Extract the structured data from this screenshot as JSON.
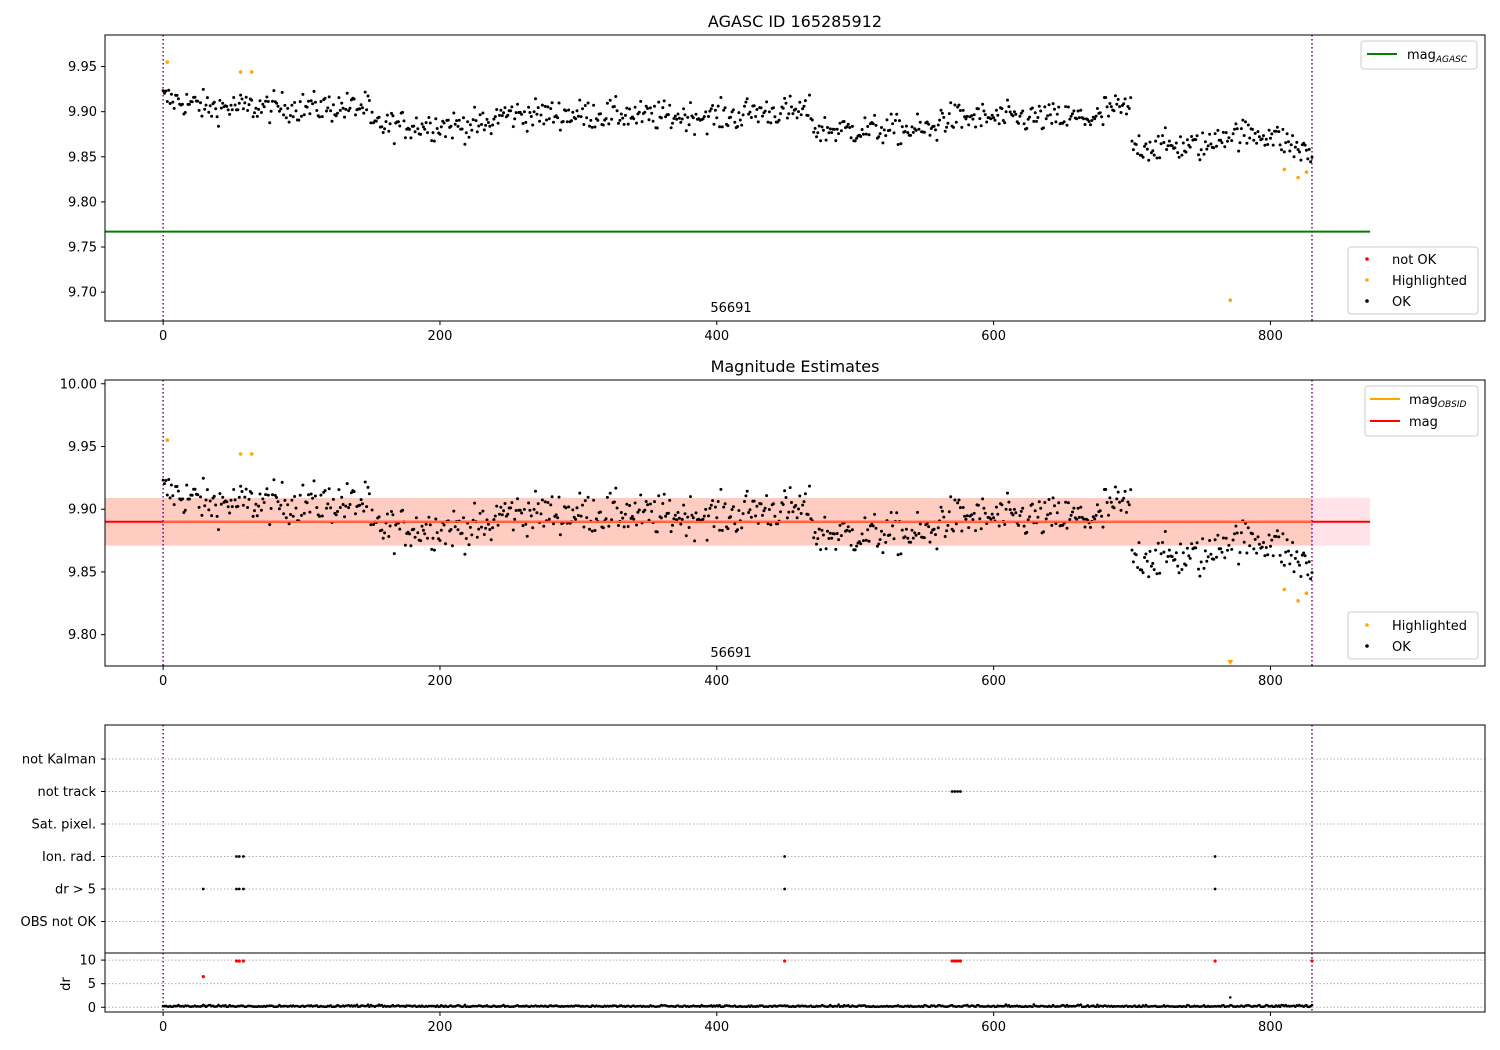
{
  "chart_data": [
    {
      "panel": "top",
      "type": "scatter",
      "title": "AGASC ID 165285912",
      "xlabel": "",
      "ylabel": "",
      "xlim": [
        -42,
        955
      ],
      "ylim": [
        9.668,
        9.985
      ],
      "xticks": [
        0,
        200,
        400,
        600,
        800
      ],
      "yticks": [
        "9.70",
        "9.75",
        "9.80",
        "9.85",
        "9.90",
        "9.95"
      ],
      "obsid_label": "56691",
      "obsid_label_x": 415,
      "vlines_x": [
        0,
        830
      ],
      "reference_line": {
        "name": "mag_AGASC",
        "y": 9.767,
        "x_range": [
          -42,
          872
        ],
        "color": "#008000"
      },
      "legend_lines": [
        {
          "name": "mag",
          "sub": "AGASC",
          "color": "#008000"
        }
      ],
      "legend_points": [
        {
          "name": "not OK",
          "color": "#ff0000"
        },
        {
          "name": "Highlighted",
          "color": "#ffa500"
        },
        {
          "name": "OK",
          "color": "#000000"
        }
      ],
      "series": [
        {
          "name": "OK",
          "color": "#000000",
          "generator": "main"
        },
        {
          "name": "Highlighted",
          "color": "#ffa500",
          "points": [
            [
              3,
              9.955
            ],
            [
              56,
              9.944
            ],
            [
              64,
              9.944
            ],
            [
              771,
              9.691
            ],
            [
              810,
              9.836
            ],
            [
              820,
              9.827
            ],
            [
              826,
              9.833
            ]
          ]
        },
        {
          "name": "not OK",
          "color": "#ff0000",
          "points": []
        }
      ]
    },
    {
      "panel": "middle",
      "type": "scatter",
      "title": "Magnitude Estimates",
      "xlabel": "",
      "ylabel": "",
      "xlim": [
        -42,
        955
      ],
      "ylim": [
        9.775,
        10.003
      ],
      "xticks": [
        0,
        200,
        400,
        600,
        800
      ],
      "yticks": [
        "9.80",
        "9.85",
        "9.90",
        "9.95",
        "10.00"
      ],
      "obsid_label": "56691",
      "obsid_label_x": 415,
      "vlines_x": [
        0,
        830
      ],
      "reference_line": {
        "name": "mag",
        "y": 9.89,
        "x_range": [
          -42,
          872
        ],
        "color": "#ff0000"
      },
      "band_outer": {
        "y": [
          9.871,
          9.909
        ],
        "x_range": [
          -42,
          872
        ],
        "color": "#ffc0cb"
      },
      "band_inner": {
        "y": [
          9.871,
          9.909
        ],
        "x_range": [
          -42,
          830
        ],
        "color": "#ffa07a"
      },
      "legend_lines": [
        {
          "name": "mag",
          "sub": "OBSID",
          "color": "#ffa500"
        },
        {
          "name": "mag",
          "sub": "",
          "color": "#ff0000"
        }
      ],
      "legend_points": [
        {
          "name": "Highlighted",
          "color": "#ffa500"
        },
        {
          "name": "OK",
          "color": "#000000"
        }
      ],
      "series": [
        {
          "name": "OK",
          "color": "#000000",
          "generator": "main"
        },
        {
          "name": "Highlighted",
          "color": "#ffa500",
          "points": [
            [
              3,
              9.955
            ],
            [
              56,
              9.944
            ],
            [
              64,
              9.944
            ],
            [
              810,
              9.836
            ],
            [
              820,
              9.827
            ],
            [
              826,
              9.833
            ]
          ]
        }
      ]
    },
    {
      "panel": "flags",
      "type": "scatter",
      "xlim": [
        -42,
        955
      ],
      "categories": [
        "OBS not OK",
        "dr > 5",
        "Ion. rad.",
        "Sat. pixel.",
        "not track",
        "not Kalman"
      ],
      "points": [
        {
          "category": "dr > 5",
          "x": [
            29,
            53,
            55,
            58,
            449,
            760
          ]
        },
        {
          "category": "Ion. rad.",
          "x": [
            53,
            55,
            58,
            449,
            760
          ]
        },
        {
          "category": "not track",
          "x": [
            570,
            572,
            574,
            576
          ]
        }
      ]
    },
    {
      "panel": "dr",
      "type": "scatter",
      "xlim": [
        -42,
        955
      ],
      "ylim": [
        -1,
        11.5
      ],
      "ylabel": "dr",
      "xticks": [
        0,
        200,
        400,
        600,
        800
      ],
      "yticks": [
        0,
        5,
        10
      ],
      "ok_series": {
        "color": "#000000",
        "generator": "dr"
      },
      "extra_ok_points": [
        [
          771,
          2.1
        ]
      ],
      "notok_series": {
        "color": "#ff0000",
        "points": [
          [
            29,
            6.5
          ],
          [
            53,
            9.8
          ],
          [
            55,
            9.8
          ],
          [
            58,
            9.8
          ],
          [
            449,
            9.8
          ],
          [
            570,
            9.8
          ],
          [
            572,
            9.8
          ],
          [
            574,
            9.8
          ],
          [
            576,
            9.8
          ],
          [
            760,
            9.8
          ],
          [
            830,
            9.8
          ]
        ]
      }
    }
  ]
}
